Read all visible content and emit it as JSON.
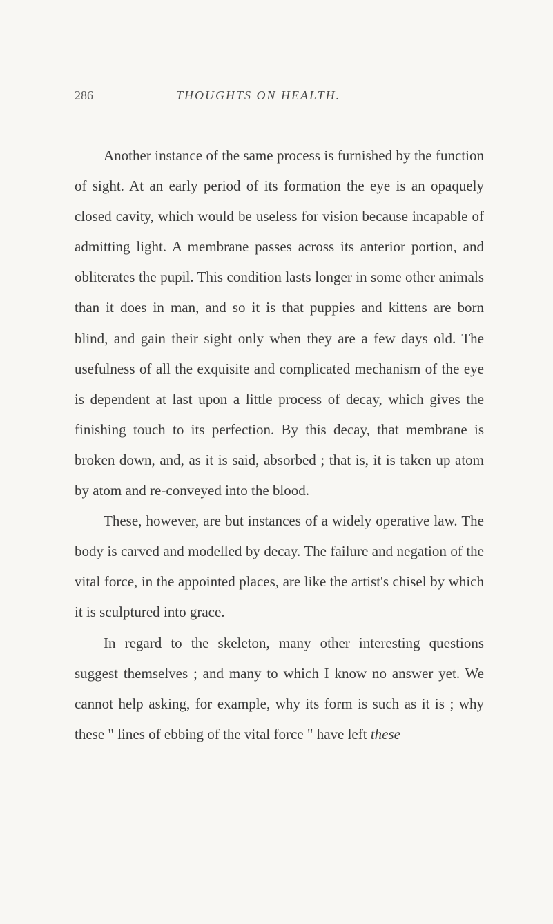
{
  "page": {
    "number": "286",
    "running_header": "THOUGHTS ON HEALTH.",
    "background_color": "#f8f7f3",
    "text_color": "#3a3a3a",
    "header_color": "#4a4a4a",
    "page_number_color": "#5a5a5a",
    "body_fontsize": 21,
    "header_fontsize": 18,
    "line_height": 2.1,
    "text_indent": 42
  },
  "paragraphs": {
    "p1_part1": "Another instance of the same process is furnished by the function of sight. At an early period of its formation the eye is an opaquely closed cavity, which would be useless for vision because incapable of ad­mitting light. A membrane passes across its anterior portion, and obliterates the pupil. This condition lasts longer in some other animals than it does in man, and so it is that puppies and kittens are born blind, and gain their sight only when they are a few days old. The usefulness of all the exquisite and complicated mechanism of the eye is dependent at last upon a little process of decay, which gives the finishing touch to its perfection. By this decay, that membrane is broken down, and, as it is said, absorbed ; that is, it is taken up atom by atom and re-conveyed into the blood.",
    "p2": "These, however, are but instances of a widely operative law. The body is carved and modelled by decay. The failure and negation of the vital force, in the appointed places, are like the artist's chisel by which it is sculptured into grace.",
    "p3_part1": "In regard to the skeleton, many other interesting questions suggest themselves ; and many to which I know no answer yet. We cannot help asking, for example, why its form is such as it is ; why these \" lines of ebbing of the vital force \" have left ",
    "p3_italic": "these"
  }
}
